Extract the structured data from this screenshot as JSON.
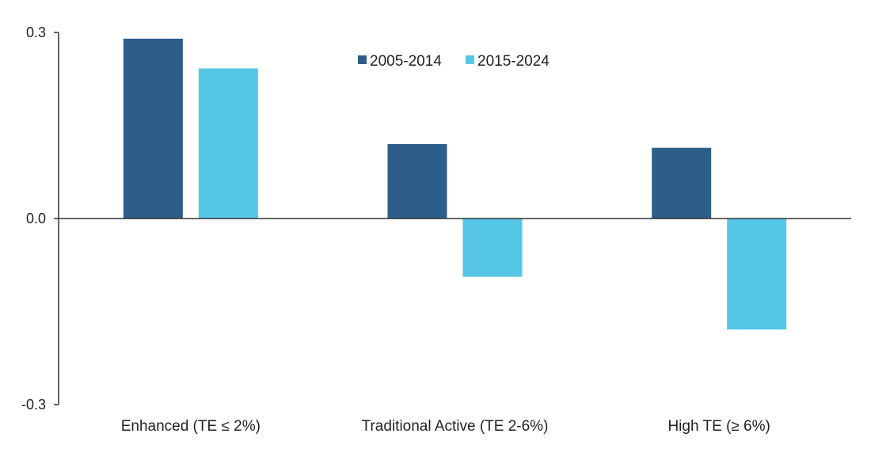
{
  "chart_data": {
    "type": "bar",
    "title": "",
    "xlabel": "",
    "ylabel": "",
    "categories": [
      "Enhanced (TE ≤ 2%)",
      "Traditional Active (TE 2-6%)",
      "High TE (≥ 6%)"
    ],
    "series": [
      {
        "name": "2005-2014",
        "values": [
          0.29,
          0.12,
          0.114
        ],
        "color": "#2D5E89"
      },
      {
        "name": "2015-2024",
        "values": [
          0.242,
          -0.094,
          -0.179
        ],
        "color": "#55C6E5"
      }
    ],
    "ylim": [
      -0.3,
      0.3
    ],
    "yticks": [
      0.3,
      0.0,
      -0.3
    ],
    "ytick_labels": [
      "0.3",
      "0.0",
      "-0.3"
    ],
    "grid": false,
    "legend_position": "top-center",
    "axis_color": "#333333"
  }
}
